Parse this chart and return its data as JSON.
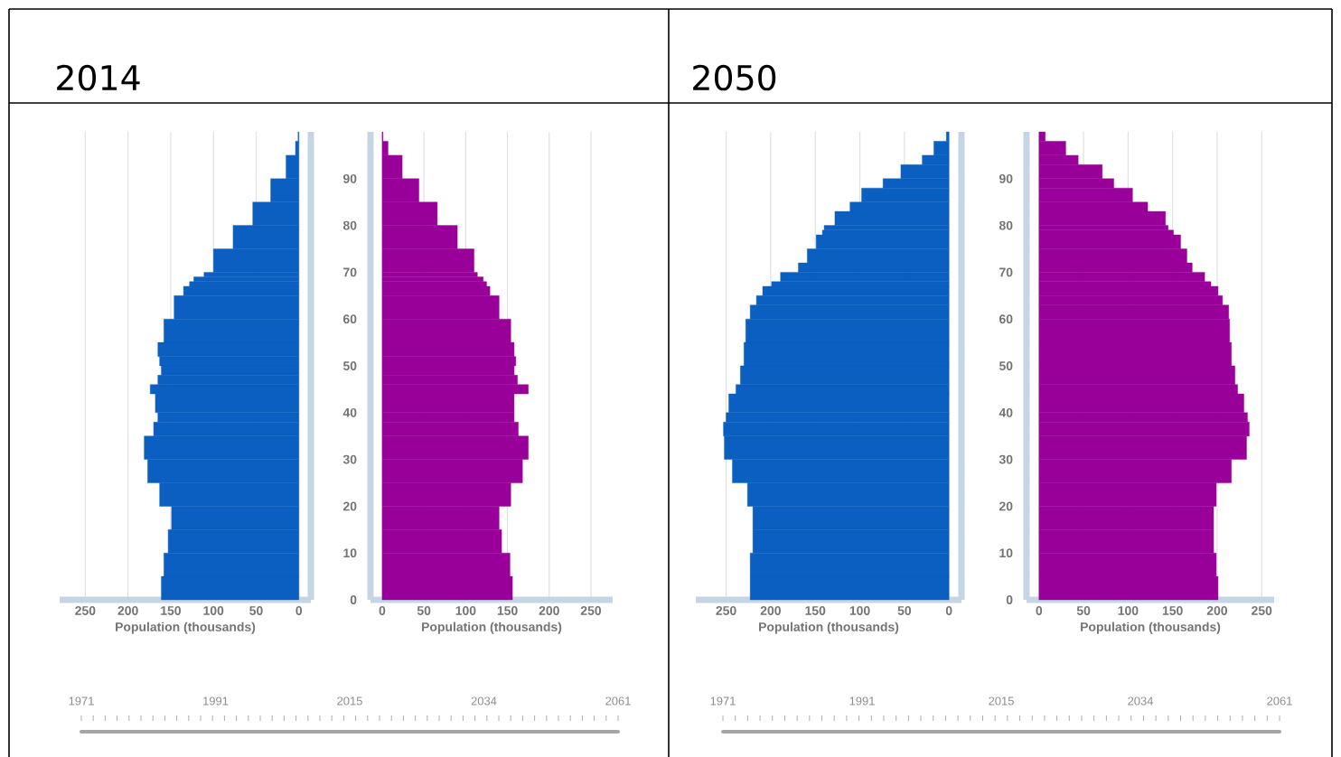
{
  "chart_data": [
    {
      "type": "histogram",
      "title": "2014",
      "orientation": "horizontal",
      "color": "#0b5fc0",
      "xlabel": "Population (thousands)",
      "grid": "x",
      "tick_labels": "x",
      "xlim": [
        280,
        -14
      ],
      "xticks": [
        250,
        200,
        150,
        100,
        50,
        0
      ],
      "ylim": [
        0,
        100
      ],
      "yticks": [
        0,
        10,
        20,
        30,
        40,
        50,
        60,
        70,
        80,
        90
      ],
      "bins": [
        0,
        5,
        10,
        15,
        20,
        25,
        30,
        35,
        38,
        40,
        44,
        46,
        48,
        50,
        52,
        55,
        60,
        65,
        67,
        68,
        69,
        70,
        75,
        80,
        85,
        90,
        95,
        98,
        100
      ],
      "values": [
        161,
        158,
        153,
        149,
        163,
        177,
        181,
        170,
        165,
        168,
        174,
        165,
        161,
        163,
        165,
        158,
        146,
        135,
        128,
        123,
        111,
        100,
        77,
        54,
        33,
        15,
        4,
        1
      ]
    },
    {
      "type": "histogram",
      "orientation": "horizontal",
      "color": "#990099",
      "xlabel": "Population (thousands)",
      "grid": "x",
      "xlim": [
        -14,
        276
      ],
      "xticks": [
        0,
        50,
        100,
        150,
        200,
        250
      ],
      "ylim": [
        0,
        100
      ],
      "yticks": [
        0,
        10,
        20,
        30,
        40,
        50,
        60,
        70,
        80,
        90
      ],
      "bins": [
        0,
        5,
        10,
        15,
        20,
        25,
        30,
        35,
        38,
        40,
        44,
        46,
        48,
        50,
        52,
        55,
        60,
        65,
        67,
        68,
        69,
        70,
        75,
        80,
        85,
        90,
        95,
        98,
        100
      ],
      "values": [
        156,
        153,
        143,
        140,
        154,
        168,
        175,
        163,
        158,
        158,
        175,
        162,
        158,
        160,
        158,
        154,
        140,
        129,
        125,
        121,
        114,
        110,
        90,
        66,
        44,
        24,
        7,
        1
      ]
    },
    {
      "type": "other",
      "annotations": [
        "1971",
        "1991",
        "2015",
        "2034",
        "2061"
      ]
    },
    {
      "type": "histogram",
      "title": "2050",
      "orientation": "horizontal",
      "color": "#0b5fc0",
      "xlabel": "Population (thousands)",
      "grid": "x",
      "tick_labels": "x",
      "xlim": [
        284,
        -14
      ],
      "xticks": [
        250,
        200,
        150,
        100,
        50,
        0
      ],
      "ylim": [
        0,
        100
      ],
      "yticks": [
        0,
        10,
        20,
        30,
        40,
        50,
        60,
        70,
        80,
        90
      ],
      "bins": [
        0,
        5,
        10,
        15,
        20,
        25,
        30,
        35,
        38,
        40,
        44,
        46,
        50,
        55,
        60,
        63,
        65,
        67,
        68,
        70,
        72,
        75,
        78,
        79,
        80,
        83,
        85,
        88,
        90,
        93,
        95,
        98,
        100
      ],
      "values": [
        223,
        223,
        220,
        220,
        226,
        243,
        252,
        253,
        250,
        247,
        239,
        234,
        230,
        228,
        223,
        216,
        209,
        199,
        189,
        169,
        159,
        149,
        142,
        140,
        128,
        111,
        98,
        74,
        54,
        30,
        17,
        3
      ]
    },
    {
      "type": "histogram",
      "orientation": "horizontal",
      "color": "#990099",
      "xlabel": "Population (thousands)",
      "grid": "x",
      "xlim": [
        -14,
        264
      ],
      "xticks": [
        0,
        50,
        100,
        150,
        200,
        250
      ],
      "ylim": [
        0,
        100
      ],
      "yticks": [
        0,
        10,
        20,
        30,
        40,
        50,
        60,
        70,
        80,
        90
      ],
      "bins": [
        0,
        5,
        10,
        15,
        20,
        25,
        30,
        35,
        38,
        40,
        44,
        46,
        50,
        55,
        60,
        63,
        65,
        67,
        68,
        70,
        72,
        75,
        78,
        79,
        80,
        83,
        85,
        88,
        90,
        93,
        95,
        98,
        100
      ],
      "values": [
        201,
        199,
        196,
        196,
        199,
        216,
        233,
        236,
        234,
        230,
        223,
        220,
        216,
        214,
        213,
        206,
        201,
        193,
        186,
        172,
        166,
        159,
        151,
        145,
        142,
        122,
        105,
        84,
        71,
        44,
        30,
        7
      ]
    },
    {
      "type": "other",
      "annotations": [
        "1971",
        "1991",
        "2015",
        "2034",
        "2061"
      ]
    }
  ]
}
